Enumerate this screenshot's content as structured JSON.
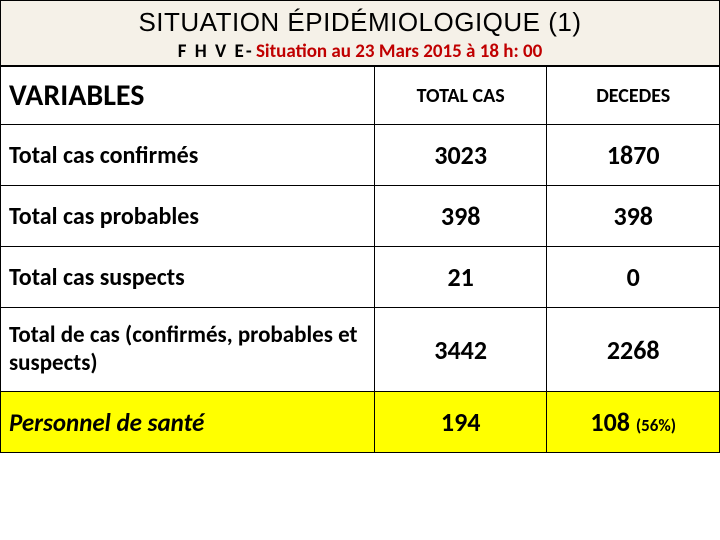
{
  "title": "SITUATION ÉPIDÉMIOLOGIQUE (1)",
  "subtitle_prefix": "F H V E",
  "subtitle_dash": "-  ",
  "subtitle_red": "Situation au 23 Mars 2015 à 18 h: 00",
  "table": {
    "columns": [
      "VARIABLES",
      "TOTAL CAS",
      "DECEDES"
    ],
    "rows": [
      {
        "label": "Total cas confirmés",
        "total": "3023",
        "deces": "1870",
        "class": ""
      },
      {
        "label": "Total cas probables",
        "total": "398",
        "deces": "398",
        "class": ""
      },
      {
        "label": "Total cas suspects",
        "total": "21",
        "deces": "0",
        "class": ""
      },
      {
        "label": "Total de cas (confirmés, probables et suspects)",
        "total": "3442",
        "deces": "2268",
        "class": "sum-row"
      },
      {
        "label": "Personnel de santé",
        "total": "194",
        "deces": "108",
        "deces_pct": "(56%)",
        "class": "staff-row"
      }
    ],
    "highlight_color": "#ffff00",
    "border_color": "#000000",
    "header_bg": "#f5f1e8",
    "accent_color": "#c00000"
  }
}
